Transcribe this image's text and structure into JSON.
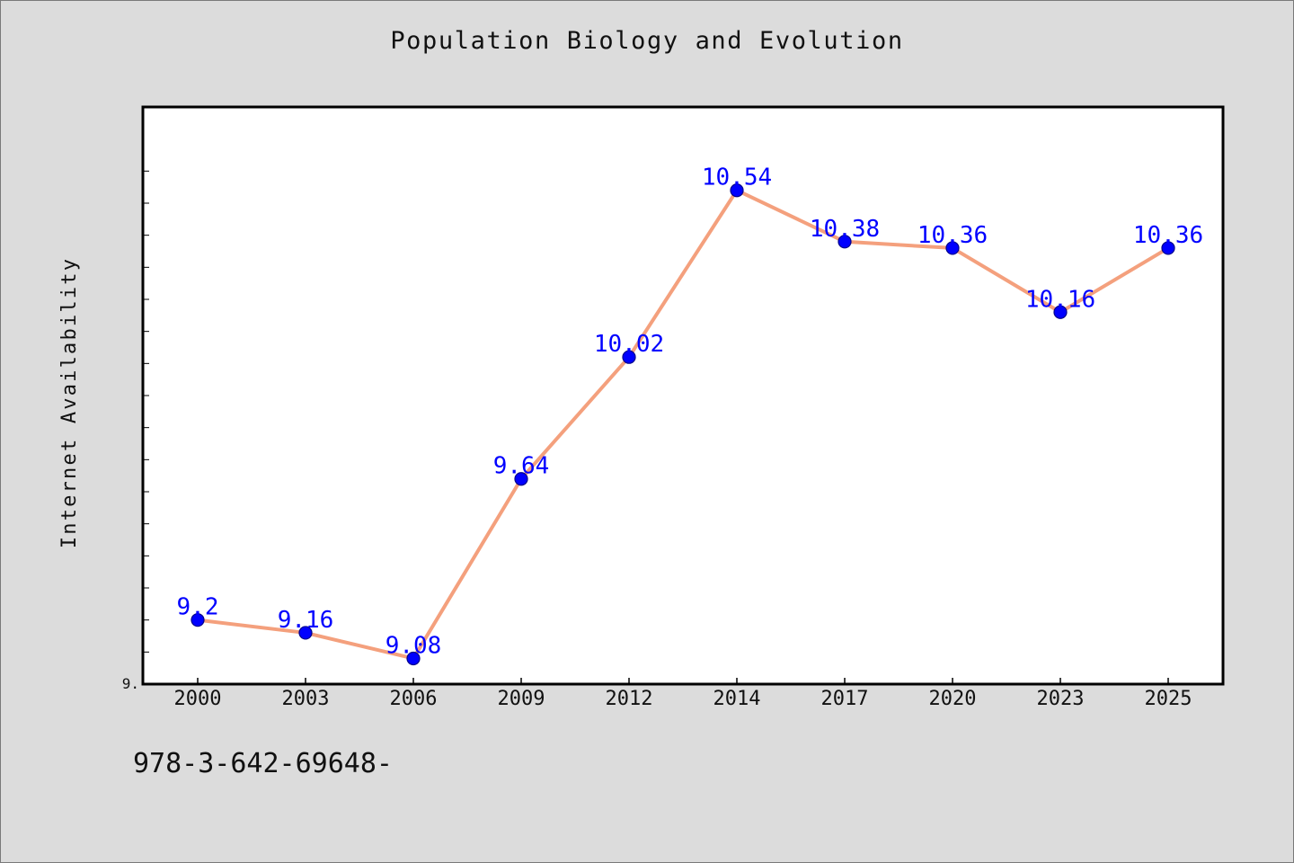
{
  "chart_data": {
    "type": "line",
    "title": "Population Biology and Evolution",
    "ylabel": "Internet Availability",
    "xlabel": "",
    "categories": [
      "2000",
      "2003",
      "2006",
      "2009",
      "2012",
      "2014",
      "2017",
      "2020",
      "2023",
      "2025"
    ],
    "series": [
      {
        "values": [
          9.2,
          9.16,
          9.08,
          9.64,
          10.02,
          10.54,
          10.38,
          10.36,
          10.16,
          10.36
        ],
        "labels": [
          "9.2",
          "9.16",
          "9.08",
          "9.64",
          "10.02",
          "10.54",
          "10.38",
          "10.36",
          "10.16",
          "10.36"
        ]
      }
    ],
    "ylim": [
      9.0,
      10.8
    ],
    "yticks": [
      9.0
    ],
    "ytick_labels": [
      "9."
    ],
    "grid": false,
    "legend": "none",
    "colors": {
      "line": "#f4a07d",
      "marker": "#0000ff",
      "marker_edge": "#00008b",
      "data_label": "#0000ff",
      "plot_background": "#ffffff",
      "page_background": "#dcdcdc"
    }
  },
  "footer": {
    "text": "978-3-642-69648-"
  }
}
